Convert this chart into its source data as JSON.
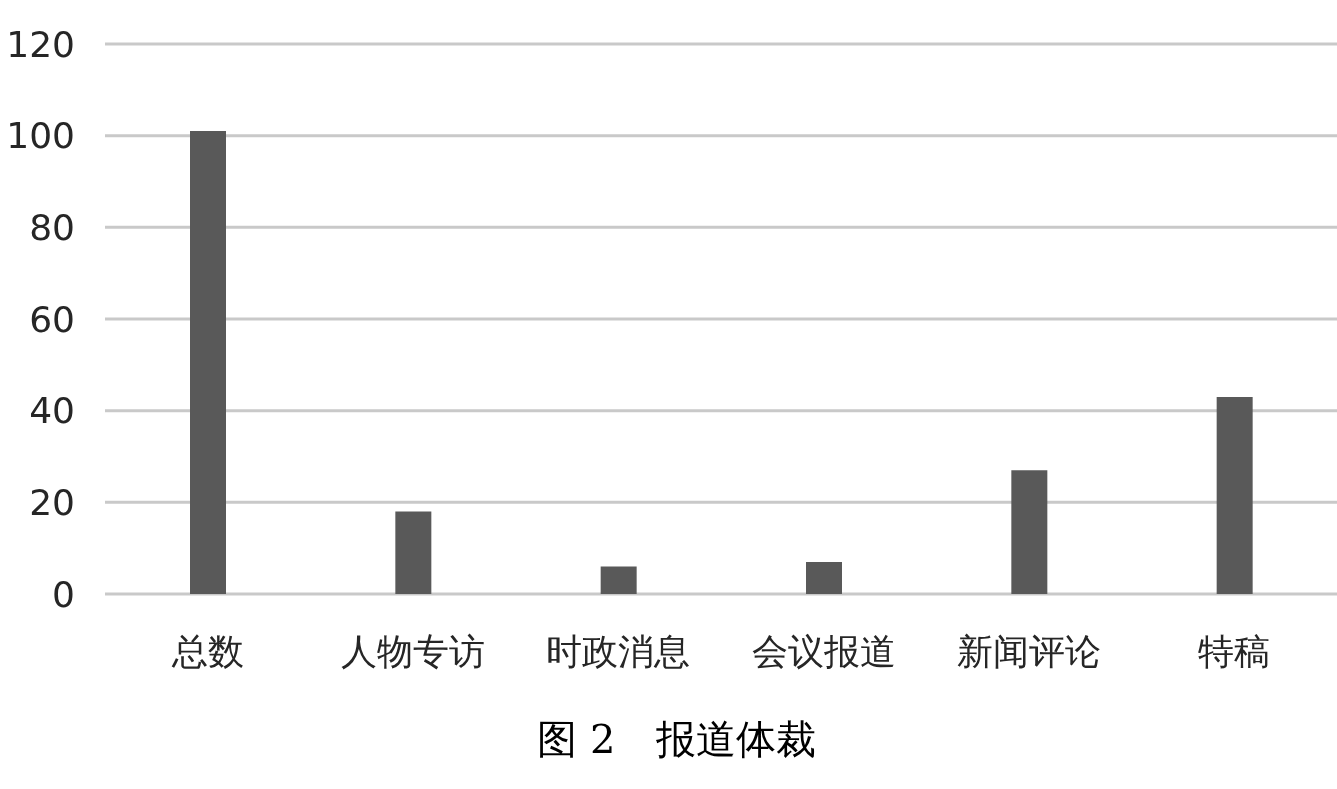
{
  "chart_data": {
    "type": "bar",
    "title": "图 2　报道体裁",
    "categories": [
      "总数",
      "人物专访",
      "时政消息",
      "会议报道",
      "新闻评论",
      "特稿"
    ],
    "values": [
      101,
      18,
      6,
      7,
      27,
      43
    ],
    "color": "#595959",
    "ylim": [
      0,
      120
    ],
    "yticks": [
      0,
      20,
      40,
      60,
      80,
      100,
      120
    ],
    "grid": "y"
  }
}
